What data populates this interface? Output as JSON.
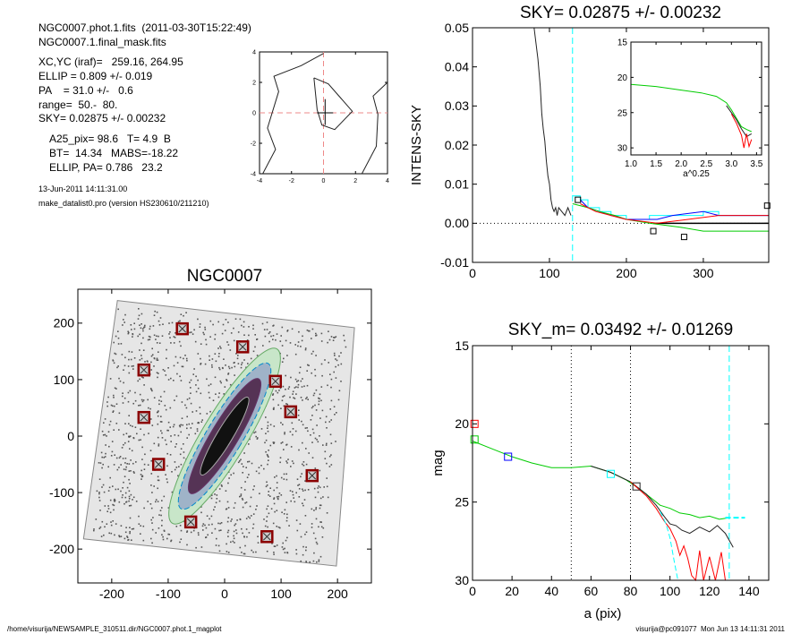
{
  "header": {
    "file_line": "NGC0007.phot.1.fits  (2011-03-30T15:22:49)",
    "mask_line": "NGC0007.1.final_mask.fits",
    "xcyc": "XC,YC (iraf)=   259.16, 264.95",
    "ellip": "ELLIP = 0.809 +/- 0.019",
    "pa": "PA    = 31.0 +/-   0.6",
    "range": "range=  50.-  80.",
    "sky": "SKY= 0.02875 +/- 0.00232",
    "a25": "A25_pix= 98.6   T= 4.9  B",
    "bt": "BT=  14.34   MABS=-18.22",
    "ellip_pa": "ELLIP, PA= 0.786   23.2",
    "date": "13-Jun-2011 14:11:31.00",
    "program": "make_datalist0.pro (version HS230610/211210)"
  },
  "footer": {
    "path": "/home/visurija/NEWSAMPLE_310511.dir/NGC0007.phot.1_magplot",
    "user": "visurija@pc091077  Mon Jun 13 14:11:31 2011"
  },
  "colors": {
    "red": "#ff0000",
    "green": "#00cc00",
    "blue": "#0000ff",
    "cyan": "#00ffff",
    "dark": "#222222",
    "marker": "#8b0000"
  },
  "chart_data": [
    {
      "id": "center",
      "type": "line",
      "xlim": [
        -4,
        4
      ],
      "ylim": [
        -4,
        4
      ],
      "xticks": [
        -4,
        -2,
        0,
        2,
        4
      ],
      "yticks": [
        -4,
        -2,
        0,
        2,
        4
      ],
      "crosshair": [
        0,
        0
      ],
      "contours": [
        [
          [
            -3.8,
            -4
          ],
          [
            -3,
            -2.4
          ],
          [
            -3.5,
            -1
          ],
          [
            -2.8,
            1.4
          ],
          [
            -3.1,
            2.4
          ],
          [
            -1.4,
            3.1
          ],
          [
            0,
            3.9
          ]
        ],
        [
          [
            -0.6,
            2.3
          ],
          [
            0.3,
            1.9
          ],
          [
            1.8,
            0.1
          ],
          [
            0.7,
            -1.1
          ],
          [
            -0.1,
            -0.8
          ],
          [
            -0.4,
            0.2
          ],
          [
            -0.6,
            2.3
          ]
        ],
        [
          [
            2.4,
            -4
          ],
          [
            3.3,
            -2.2
          ],
          [
            3.4,
            -0.1
          ],
          [
            3.1,
            1.1
          ],
          [
            4,
            2.0
          ]
        ]
      ]
    },
    {
      "id": "sky",
      "type": "line",
      "title": "SKY= 0.02875 +/- 0.00232",
      "ylabel": "INTENS-SKY",
      "xlim": [
        0,
        385
      ],
      "ylim": [
        -0.01,
        0.05
      ],
      "xticks": [
        0,
        100,
        200,
        300
      ],
      "yticks": [
        -0.01,
        0,
        0.01,
        0.02,
        0.03,
        0.04,
        0.05
      ],
      "ytick_labels": [
        "-0.01",
        "0.00",
        "0.01",
        "0.02",
        "0.03",
        "0.04",
        "0.05"
      ],
      "vline": 130,
      "series": [
        {
          "color": "dark",
          "values": [
            [
              80,
              0.05
            ],
            [
              85,
              0.042
            ],
            [
              88,
              0.035
            ],
            [
              90,
              0.028
            ],
            [
              92,
              0.024
            ],
            [
              94,
              0.021
            ],
            [
              96,
              0.016
            ],
            [
              98,
              0.012
            ],
            [
              100,
              0.01
            ],
            [
              102,
              0.006
            ],
            [
              104,
              0.004
            ],
            [
              106,
              0.003
            ],
            [
              108,
              0.004
            ],
            [
              110,
              0.002
            ],
            [
              112,
              0.004
            ],
            [
              116,
              0.003
            ],
            [
              120,
              0.002
            ],
            [
              124,
              0.004
            ],
            [
              128,
              0.002
            ]
          ]
        },
        {
          "color": "cyan",
          "values": [
            [
              130,
              0.007
            ],
            [
              140,
              0.007
            ],
            [
              140,
              0.006
            ],
            [
              150,
              0.006
            ],
            [
              150,
              0.004
            ],
            [
              165,
              0.004
            ],
            [
              165,
              0.003
            ],
            [
              180,
              0.003
            ],
            [
              180,
              0.002
            ],
            [
              200,
              0.002
            ],
            [
              200,
              0.001
            ],
            [
              230,
              0.001
            ],
            [
              230,
              0.002
            ],
            [
              300,
              0.002
            ],
            [
              300,
              0.003
            ],
            [
              320,
              0.003
            ],
            [
              320,
              0.002
            ],
            [
              385,
              0.002
            ]
          ]
        },
        {
          "color": "blue",
          "values": [
            [
              140,
              0.006
            ],
            [
              150,
              0.004
            ],
            [
              165,
              0.003
            ],
            [
              180,
              0.002
            ],
            [
              200,
              0.001
            ],
            [
              240,
              0.001
            ],
            [
              260,
              0.002
            ],
            [
              300,
              0.003
            ],
            [
              320,
              0.002
            ],
            [
              385,
              0.002
            ]
          ]
        },
        {
          "color": "green",
          "values": [
            [
              130,
              0.005
            ],
            [
              150,
              0.004
            ],
            [
              165,
              0.003
            ],
            [
              185,
              0.002
            ],
            [
              200,
              0.001
            ],
            [
              230,
              0.0
            ],
            [
              270,
              -0.001
            ],
            [
              300,
              -0.002
            ],
            [
              385,
              -0.002
            ]
          ]
        },
        {
          "color": "red",
          "values": [
            [
              140,
              0.005
            ],
            [
              160,
              0.003
            ],
            [
              180,
              0.002
            ],
            [
              200,
              0.001
            ],
            [
              240,
              0.0
            ],
            [
              280,
              0.001
            ],
            [
              320,
              0.002
            ],
            [
              385,
              0.002
            ]
          ]
        }
      ],
      "markers": [
        [
          137,
          0.006
        ],
        [
          235,
          -0.002
        ],
        [
          275,
          -0.0035
        ],
        [
          383,
          0.0045
        ]
      ],
      "inset": {
        "xlabel": "a^0.25",
        "xlim": [
          1.0,
          3.6
        ],
        "ylim": [
          15,
          31
        ],
        "xticks": [
          1.0,
          1.5,
          2.0,
          2.5,
          3.0,
          3.5
        ],
        "xtick_labels": [
          "1.0",
          "1.5",
          "2.0",
          "2.5",
          "3.0",
          "3.5"
        ],
        "yticks": [
          15,
          20,
          25,
          30
        ],
        "series": [
          {
            "color": "green",
            "values": [
              [
                1.0,
                21.0
              ],
              [
                1.5,
                21.3
              ],
              [
                2.0,
                21.8
              ],
              [
                2.4,
                22.2
              ],
              [
                2.7,
                22.7
              ],
              [
                2.9,
                23.6
              ],
              [
                3.0,
                24.6
              ],
              [
                3.1,
                25.8
              ],
              [
                3.2,
                27.0
              ],
              [
                3.3,
                27.4
              ],
              [
                3.4,
                27.7
              ]
            ]
          },
          {
            "color": "dark",
            "values": [
              [
                2.9,
                24.0
              ],
              [
                3.0,
                25.0
              ],
              [
                3.1,
                26.0
              ],
              [
                3.2,
                27.3
              ],
              [
                3.3,
                28.4
              ],
              [
                3.4,
                28.0
              ]
            ]
          },
          {
            "color": "red",
            "values": [
              [
                3.0,
                25.2
              ],
              [
                3.1,
                26.5
              ],
              [
                3.2,
                28.2
              ],
              [
                3.25,
                30.0
              ],
              [
                3.3,
                28.0
              ],
              [
                3.35,
                29.8
              ],
              [
                3.4,
                28.8
              ]
            ]
          }
        ]
      }
    },
    {
      "id": "image",
      "type": "scatter",
      "title": "NGC0007",
      "xlim": [
        -260,
        260
      ],
      "ylim": [
        -260,
        260
      ],
      "xticks": [
        -200,
        -100,
        0,
        100,
        200
      ],
      "yticks": [
        -200,
        -100,
        0,
        100,
        200
      ],
      "galaxy_pa_deg": 31.0,
      "galaxy_axis_ratio": 0.191,
      "markers": [
        [
          -75,
          190
        ],
        [
          32,
          158
        ],
        [
          -143,
          117
        ],
        [
          90,
          97
        ],
        [
          -143,
          33
        ],
        [
          117,
          43
        ],
        [
          -117,
          -50
        ],
        [
          155,
          -70
        ],
        [
          -60,
          -152
        ],
        [
          75,
          -178
        ]
      ]
    },
    {
      "id": "mag",
      "type": "line",
      "title": "SKY_m=  0.03492 +/- 0.01269",
      "xlabel": "a (pix)",
      "ylabel": "mag",
      "xlim": [
        0,
        150
      ],
      "ylim": [
        30,
        15
      ],
      "xticks": [
        0,
        20,
        40,
        60,
        80,
        100,
        120,
        140
      ],
      "yticks": [
        15,
        20,
        25,
        30
      ],
      "vlines_dotted": [
        50,
        80
      ],
      "vlines_cyan": [
        130
      ],
      "series": [
        {
          "color": "green",
          "values": [
            [
              0,
              21.1
            ],
            [
              10,
              21.6
            ],
            [
              20,
              22.1
            ],
            [
              30,
              22.5
            ],
            [
              40,
              22.8
            ],
            [
              50,
              22.8
            ],
            [
              60,
              22.7
            ],
            [
              70,
              23.1
            ],
            [
              78,
              23.6
            ],
            [
              85,
              24.2
            ],
            [
              90,
              24.7
            ],
            [
              95,
              25.2
            ],
            [
              100,
              25.4
            ],
            [
              105,
              25.7
            ],
            [
              110,
              25.8
            ],
            [
              115,
              26.0
            ],
            [
              120,
              25.9
            ],
            [
              125,
              26.1
            ],
            [
              130,
              26.0
            ]
          ]
        },
        {
          "color": "dark",
          "values": [
            [
              60,
              22.7
            ],
            [
              70,
              23.1
            ],
            [
              80,
              23.7
            ],
            [
              88,
              24.5
            ],
            [
              93,
              25.2
            ],
            [
              97,
              25.9
            ],
            [
              100,
              26.4
            ],
            [
              103,
              26.5
            ],
            [
              106,
              26.8
            ],
            [
              110,
              27.0
            ],
            [
              115,
              26.6
            ],
            [
              120,
              26.9
            ],
            [
              124,
              26.5
            ],
            [
              128,
              27.0
            ],
            [
              132,
              27.9
            ]
          ]
        },
        {
          "color": "red",
          "values": [
            [
              80,
              23.7
            ],
            [
              88,
              24.6
            ],
            [
              93,
              25.4
            ],
            [
              97,
              26.2
            ],
            [
              100,
              26.7
            ],
            [
              103,
              27.5
            ],
            [
              105,
              28.4
            ],
            [
              107,
              27.8
            ],
            [
              109,
              28.6
            ],
            [
              111,
              29.7
            ],
            [
              113,
              30.0
            ],
            [
              115,
              28.1
            ],
            [
              117,
              30.0
            ],
            [
              120,
              28.5
            ],
            [
              123,
              30.0
            ],
            [
              126,
              28.2
            ],
            [
              128,
              30.0
            ]
          ]
        },
        {
          "color": "cyan",
          "values": [
            [
              95,
              25.6
            ],
            [
              98,
              26.4
            ],
            [
              100,
              27.3
            ],
            [
              102,
              28.7
            ],
            [
              104,
              30.0
            ]
          ]
        }
      ],
      "cyan_hline": [
        [
          128,
          26.0
        ],
        [
          138,
          26.0
        ]
      ],
      "markers": [
        {
          "color": "red",
          "values": [
            [
              1,
              20.0
            ]
          ]
        },
        {
          "color": "green",
          "values": [
            [
              1,
              21.0
            ]
          ]
        },
        {
          "color": "blue",
          "values": [
            [
              18,
              22.1
            ]
          ]
        },
        {
          "color": "dark",
          "values": [
            [
              83,
              24.0
            ]
          ]
        },
        {
          "color": "cyan",
          "values": [
            [
              70,
              23.2
            ]
          ]
        }
      ]
    }
  ]
}
